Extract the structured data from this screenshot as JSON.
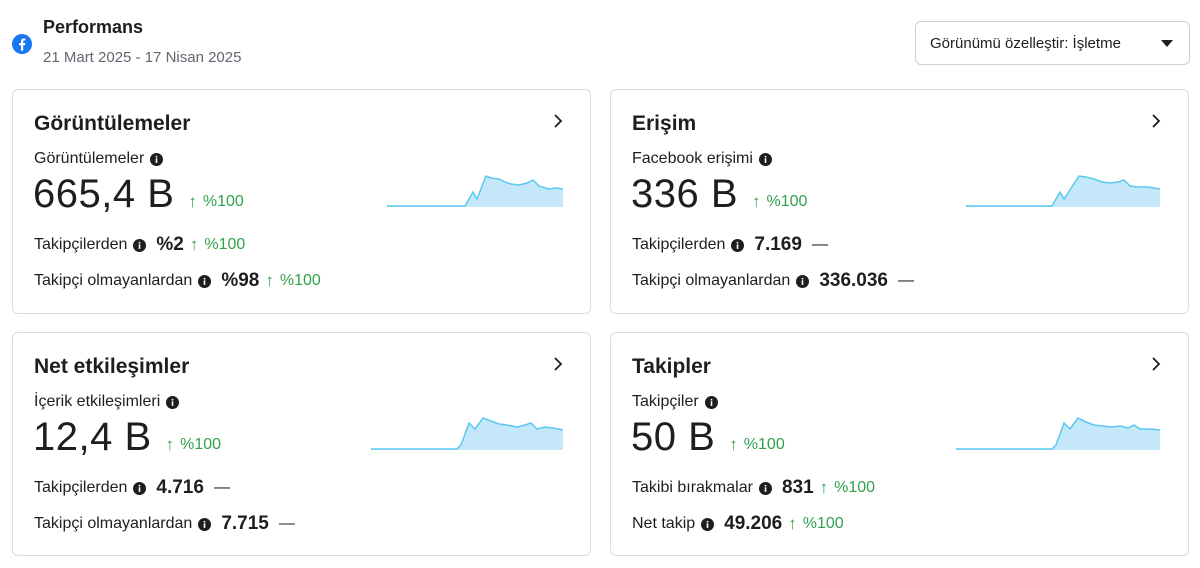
{
  "header": {
    "icon": "facebook-icon",
    "title": "Performans",
    "date_range": "21 Mart 2025 - 17 Nisan 2025",
    "customize_label": "Görünümü özelleştir: İşletme"
  },
  "colors": {
    "positive": "#31a24c",
    "spark_fill": "#c5e7fa",
    "spark_line": "#5ac8f0",
    "facebook_blue": "#1877f2"
  },
  "cards": [
    {
      "title": "Görüntülemeler",
      "metric_label": "Görüntülemeler",
      "value": "665,4 B",
      "trend": "%100",
      "rows": [
        {
          "label": "Takipçilerden",
          "value": "%2",
          "trend": "%100"
        },
        {
          "label": "Takipçi olmayanlardan",
          "value": "%98",
          "trend": "%100"
        }
      ]
    },
    {
      "title": "Erişim",
      "metric_label": "Facebook erişimi",
      "value": "336 B",
      "trend": "%100",
      "rows": [
        {
          "label": "Takipçilerden",
          "value": "7.169",
          "trend": "—"
        },
        {
          "label": "Takipçi olmayanlardan",
          "value": "336.036",
          "trend": "—"
        }
      ]
    },
    {
      "title": "Net etkileşimler",
      "metric_label": "İçerik etkileşimleri",
      "value": "12,4 B",
      "trend": "%100",
      "rows": [
        {
          "label": "Takipçilerden",
          "value": "4.716",
          "trend": "—"
        },
        {
          "label": "Takipçi olmayanlardan",
          "value": "7.715",
          "trend": "—"
        }
      ]
    },
    {
      "title": "Takipler",
      "metric_label": "Takipçiler",
      "value": "50 B",
      "trend": "%100",
      "rows": [
        {
          "label": "Takibi bırakmalar",
          "value": "831",
          "trend": "%100"
        },
        {
          "label": "Net takip",
          "value": "49.206",
          "trend": "%100"
        }
      ]
    }
  ]
}
